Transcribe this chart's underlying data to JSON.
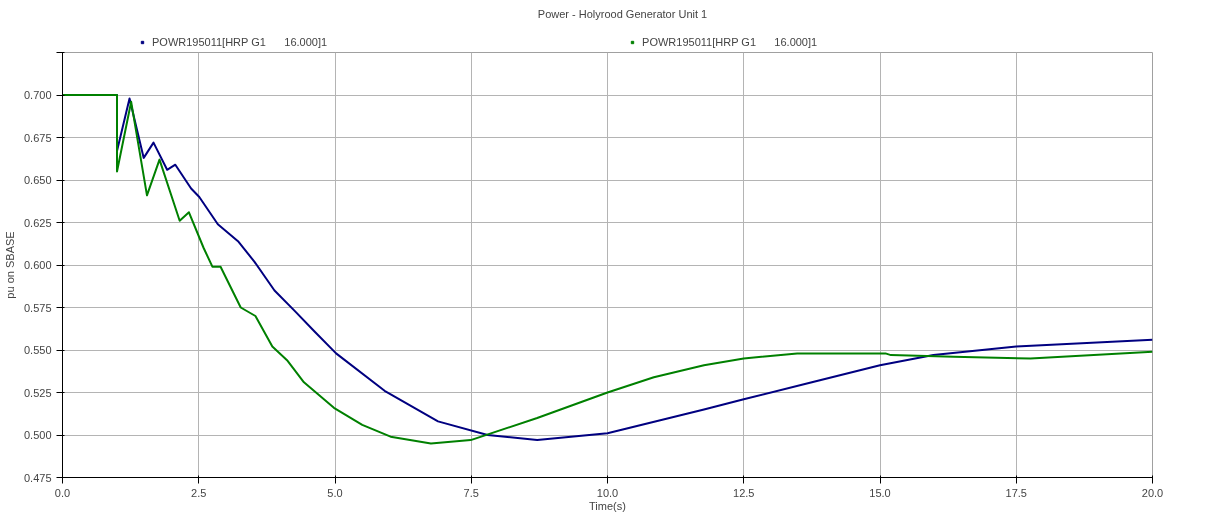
{
  "chart_data": {
    "type": "line",
    "title": "Power - Holyrood Generator Unit 1",
    "xlabel": "Time(s)",
    "ylabel": "pu on SBASE",
    "xlim": [
      0,
      20
    ],
    "xticks": [
      {
        "value": 0,
        "label": "0.0"
      },
      {
        "value": 2.5,
        "label": "2.5"
      },
      {
        "value": 5,
        "label": "5.0"
      },
      {
        "value": 7.5,
        "label": "7.5"
      },
      {
        "value": 10,
        "label": "10.0"
      },
      {
        "value": 12.5,
        "label": "12.5"
      },
      {
        "value": 15,
        "label": "15.0"
      },
      {
        "value": 17.5,
        "label": "17.5"
      },
      {
        "value": 20,
        "label": "20.0"
      }
    ],
    "ylim": [
      0.475,
      0.725
    ],
    "yticks": [
      {
        "value": 0.475,
        "label": "0.475"
      },
      {
        "value": 0.5,
        "label": "0.500"
      },
      {
        "value": 0.525,
        "label": "0.525"
      },
      {
        "value": 0.55,
        "label": "0.550"
      },
      {
        "value": 0.575,
        "label": "0.575"
      },
      {
        "value": 0.6,
        "label": "0.600"
      },
      {
        "value": 0.625,
        "label": "0.625"
      },
      {
        "value": 0.65,
        "label": "0.650"
      },
      {
        "value": 0.675,
        "label": "0.675"
      },
      {
        "value": 0.7,
        "label": "0.700"
      },
      {
        "value": 0.725,
        "label": null
      }
    ],
    "grid": true,
    "legend": "top",
    "marker": "none",
    "line_style": "solid",
    "series": [
      {
        "name": "POWR195011[HRP G1      16.000]1",
        "color": "#000080",
        "x": [
          0,
          1.0,
          1.0,
          1.23,
          1.49,
          1.67,
          1.92,
          2.07,
          2.36,
          2.51,
          2.85,
          3.22,
          3.52,
          3.89,
          4.26,
          4.62,
          5.02,
          5.91,
          6.89,
          7.8,
          8.71,
          10.0,
          11.77,
          12.5,
          13.75,
          15.0,
          15.98,
          17.5,
          20.0
        ],
        "values": [
          0.7,
          0.7,
          0.667,
          0.698,
          0.663,
          0.672,
          0.656,
          0.659,
          0.645,
          0.64,
          0.624,
          0.614,
          0.602,
          0.585,
          0.573,
          0.561,
          0.548,
          0.526,
          0.508,
          0.5,
          0.497,
          0.501,
          0.515,
          0.521,
          0.531,
          0.541,
          0.547,
          0.552,
          0.556
        ]
      },
      {
        "name": "POWR195011[HRP G1      16.000]1",
        "color": "#008000",
        "x": [
          0,
          1.0,
          1.0,
          1.26,
          1.55,
          1.78,
          2.15,
          2.32,
          2.59,
          2.75,
          2.9,
          3.27,
          3.54,
          3.85,
          4.12,
          4.43,
          4.98,
          5.5,
          6.02,
          6.76,
          7.49,
          8.71,
          10.0,
          10.85,
          11.77,
          12.5,
          13.48,
          15.1,
          15.2,
          16.35,
          17.76,
          20.0
        ],
        "values": [
          0.7,
          0.7,
          0.655,
          0.696,
          0.641,
          0.662,
          0.626,
          0.631,
          0.61,
          0.599,
          0.599,
          0.575,
          0.57,
          0.552,
          0.544,
          0.531,
          0.516,
          0.506,
          0.499,
          0.495,
          0.497,
          0.51,
          0.525,
          0.534,
          0.541,
          0.545,
          0.548,
          0.548,
          0.547,
          0.546,
          0.545,
          0.549
        ]
      }
    ]
  }
}
